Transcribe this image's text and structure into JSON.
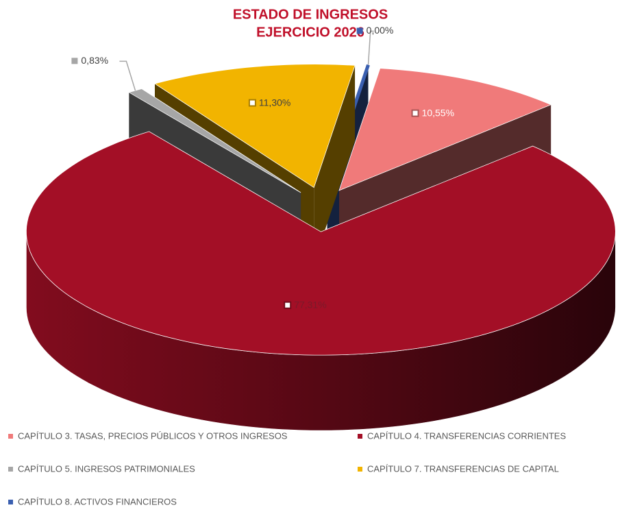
{
  "chart_data": {
    "type": "pie",
    "title": "ESTADO DE INGRESOS",
    "subtitle": "EJERCICIO 2026",
    "categories": [
      "CAPÍTULO 3. TASAS, PRECIOS PÚBLICOS Y OTROS INGRESOS",
      "CAPÍTULO 4. TRANSFERENCIAS CORRIENTES",
      "CAPÍTULO 5. INGRESOS PATRIMONIALES",
      "CAPÍTULO 7. TRANSFERENCIAS DE CAPITAL",
      "CAPÍTULO 8. ACTIVOS FINANCIEROS"
    ],
    "values": [
      10.55,
      77.31,
      0.83,
      11.3,
      0.0
    ],
    "value_labels": [
      "10,55%",
      "77,31%",
      "0,83%",
      "11,30%",
      "0,00%"
    ],
    "colors": [
      "#f07a7a",
      "#a30f26",
      "#a6a6a6",
      "#f2b400",
      "#3a5fb0"
    ],
    "legend": "bottom"
  }
}
